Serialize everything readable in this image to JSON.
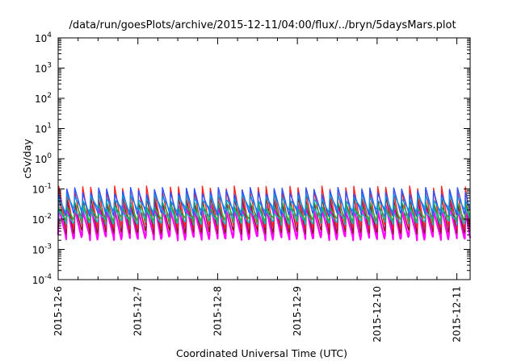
{
  "chart_data": {
    "type": "line",
    "title": "/data/run/goesPlots/archive/2015-12-11/04:00/flux/../bryn/5daysMars.plot",
    "xlabel": "Coordinated Universal Time (UTC)",
    "ylabel": "cSv/day",
    "y_scale": "log",
    "ylim": [
      0.0001,
      10000
    ],
    "y_ticks": [
      {
        "base": "10",
        "exp": "4"
      },
      {
        "base": "10",
        "exp": "3"
      },
      {
        "base": "10",
        "exp": "2"
      },
      {
        "base": "10",
        "exp": "1"
      },
      {
        "base": "10",
        "exp": "0"
      },
      {
        "base": "10",
        "exp": "-1"
      },
      {
        "base": "10",
        "exp": "-2"
      },
      {
        "base": "10",
        "exp": "-3"
      },
      {
        "base": "10",
        "exp": "-4"
      }
    ],
    "x_ticks": [
      "2015-12-6",
      "2015-12-7",
      "2015-12-8",
      "2015-12-9",
      "2015-12-10",
      "2015-12-11"
    ],
    "xlim": [
      "2015-12-06T00:00",
      "2015-12-11T04:00"
    ],
    "pulse_period_hours": 2.4,
    "legend": "none",
    "grid": false,
    "series": [
      {
        "color": "#ff00ff",
        "peak": 0.025,
        "trough": 0.0025
      },
      {
        "color": "#8b1a1a",
        "peak": 0.045,
        "trough": 0.004
      },
      {
        "color": "#ff2020",
        "peak": 0.1,
        "trough": 0.006
      },
      {
        "color": "#00c0c0",
        "peak": 0.02,
        "trough": 0.008
      },
      {
        "color": "#20b040",
        "peak": 0.03,
        "trough": 0.01
      },
      {
        "color": "#3050ff",
        "peak": 0.09,
        "trough": 0.015
      },
      {
        "color": "#1090e0",
        "peak": 0.055,
        "trough": 0.02
      }
    ]
  }
}
